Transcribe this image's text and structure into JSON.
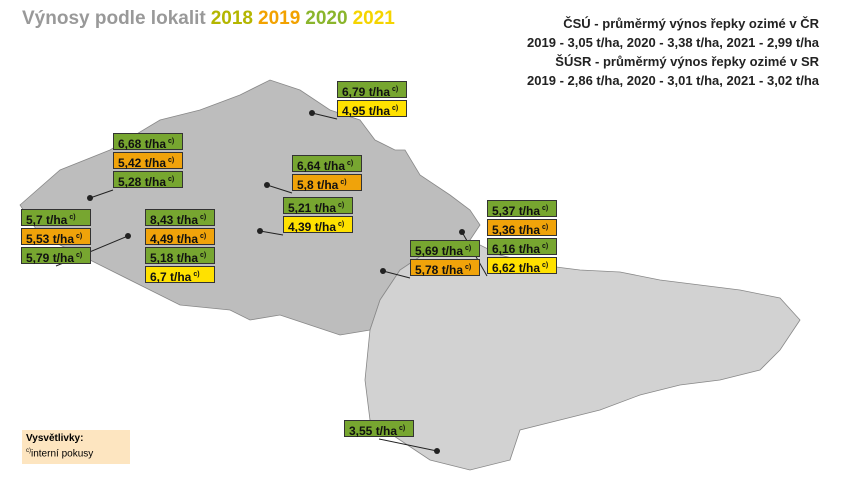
{
  "header": {
    "title": "Výnosy podle lokalit",
    "years": [
      {
        "text": "2018",
        "color": "#b4b600"
      },
      {
        "text": "2019",
        "color": "#f2a200"
      },
      {
        "text": "2020",
        "color": "#8ab52c"
      },
      {
        "text": "2021",
        "color": "#f5d400"
      }
    ]
  },
  "stats": [
    {
      "heading": "ČSÚ - průměrmý výnos řepky ozimé v ČR",
      "values": "2019 - 3,05 t/ha, 2020 - 3,38 t/ha, 2021 - 2,99 t/ha"
    },
    {
      "heading": "ŠÚSR - průměrmý výnos řepky ozimé v SR",
      "values": "2019 - 2,86 t/ha, 2020 - 3,01 t/ha, 2021 - 3,02 t/ha"
    }
  ],
  "locations": [
    {
      "yields": [
        {
          "text": "6,79 t/ha",
          "note": "c)",
          "color": "#77a630"
        },
        {
          "text": "4,95 t/ha",
          "note": "c)",
          "color": "#ffe100"
        }
      ]
    },
    {
      "yields": [
        {
          "text": "6,68 t/ha",
          "note": "c)",
          "color": "#77a630"
        },
        {
          "text": "5,42 t/ha",
          "note": "c)",
          "color": "#f0a30a"
        },
        {
          "text": "5,28 t/ha",
          "note": "c)",
          "color": "#77a630"
        }
      ]
    },
    {
      "yields": [
        {
          "text": "5,7 t/ha",
          "note": "c)",
          "color": "#77a630"
        },
        {
          "text": "5,53 t/ha",
          "note": "c)",
          "color": "#f0a30a"
        },
        {
          "text": "5,79 t/ha",
          "note": "c)",
          "color": "#77a630"
        }
      ]
    },
    {
      "yields": [
        {
          "text": "8,43 t/ha",
          "note": "c)",
          "color": "#77a630"
        },
        {
          "text": "4,49 t/ha",
          "note": "c)",
          "color": "#f0a30a"
        },
        {
          "text": "5,18 t/ha",
          "note": "c)",
          "color": "#77a630"
        },
        {
          "text": "6,7 t/ha",
          "note": "c)",
          "color": "#ffe100"
        }
      ]
    },
    {
      "yields": [
        {
          "text": "6,64 t/ha",
          "note": "c)",
          "color": "#77a630"
        },
        {
          "text": "5,8 t/ha",
          "note": "c)",
          "color": "#f0a30a"
        }
      ]
    },
    {
      "yields": [
        {
          "text": "5,21 t/ha",
          "note": "c)",
          "color": "#77a630"
        },
        {
          "text": "4,39 t/ha",
          "note": "c)",
          "color": "#ffe100"
        }
      ]
    },
    {
      "yields": [
        {
          "text": "5,37 t/ha",
          "note": "c)",
          "color": "#77a630"
        },
        {
          "text": "5,36 t/ha",
          "note": "c)",
          "color": "#f0a30a"
        },
        {
          "text": "6,16 t/ha",
          "note": "c)",
          "color": "#77a630"
        },
        {
          "text": "6,62 t/ha",
          "note": "c)",
          "color": "#ffe100"
        }
      ]
    },
    {
      "yields": [
        {
          "text": "5,69 t/ha",
          "note": "c)",
          "color": "#77a630"
        },
        {
          "text": "5,78 t/ha",
          "note": "c)",
          "color": "#f0a30a"
        }
      ]
    },
    {
      "yields": [
        {
          "text": "3,55 t/ha",
          "note": "c)",
          "color": "#77a630"
        }
      ]
    }
  ],
  "legend": {
    "title": "Vysvětlivky:",
    "note_mark": "c)",
    "note_text": "interní pokusy"
  }
}
